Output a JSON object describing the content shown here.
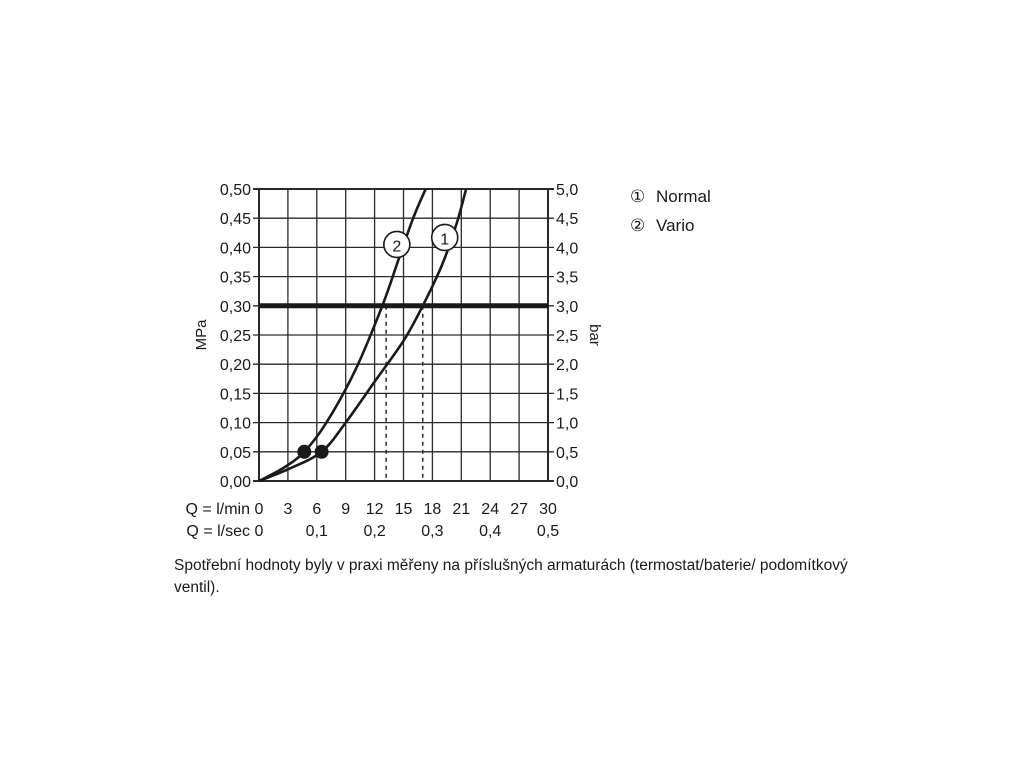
{
  "chart_data": {
    "type": "line",
    "y_left_label": "MPa",
    "y_right_label": "bar",
    "y_left_ticks": [
      "0,00",
      "0,05",
      "0,10",
      "0,15",
      "0,20",
      "0,25",
      "0,30",
      "0,35",
      "0,40",
      "0,45",
      "0,50"
    ],
    "y_right_ticks": [
      "0,0",
      "0,5",
      "1,0",
      "1,5",
      "2,0",
      "2,5",
      "3,0",
      "3,5",
      "4,0",
      "4,5",
      "5,0"
    ],
    "ylim": [
      0,
      0.5
    ],
    "xlim": [
      0,
      30
    ],
    "x_axis_lmin_label": "Q = l/min",
    "x_axis_lmin_ticks": [
      "0",
      "3",
      "6",
      "9",
      "12",
      "15",
      "18",
      "21",
      "24",
      "27",
      "30"
    ],
    "x_axis_lsec_label": "Q = l/sec",
    "x_axis_lsec_ticks": [
      "0",
      "0,1",
      "0,2",
      "0,3",
      "0,4",
      "0,5"
    ],
    "grid": true,
    "reference_line": {
      "y": 0.3
    },
    "series": [
      {
        "name": "Normal",
        "marker": "1",
        "x": [
          0,
          3,
          6.5,
          9,
          12,
          15,
          17,
          19,
          20.5,
          21.5
        ],
        "y": [
          0,
          0.02,
          0.05,
          0.1,
          0.17,
          0.24,
          0.3,
          0.37,
          0.44,
          0.5
        ],
        "dot_at": [
          6.5,
          0.05
        ],
        "dashed_to_x_at": 17
      },
      {
        "name": "Vario",
        "marker": "2",
        "x": [
          0,
          2.5,
          4.7,
          7,
          10,
          12.8,
          14.5,
          16,
          17.3
        ],
        "y": [
          0,
          0.022,
          0.05,
          0.1,
          0.19,
          0.3,
          0.38,
          0.45,
          0.5
        ],
        "dot_at": [
          4.7,
          0.05
        ],
        "dashed_to_x_at": 13.2
      }
    ],
    "legend": [
      {
        "symbol": "①",
        "label": "Normal"
      },
      {
        "symbol": "②",
        "label": "Vario"
      }
    ]
  },
  "caption": "Spotřební hodnoty byly v praxi měřeny na příslušných armaturách (termostat/baterie/ podomítkový ventil)."
}
